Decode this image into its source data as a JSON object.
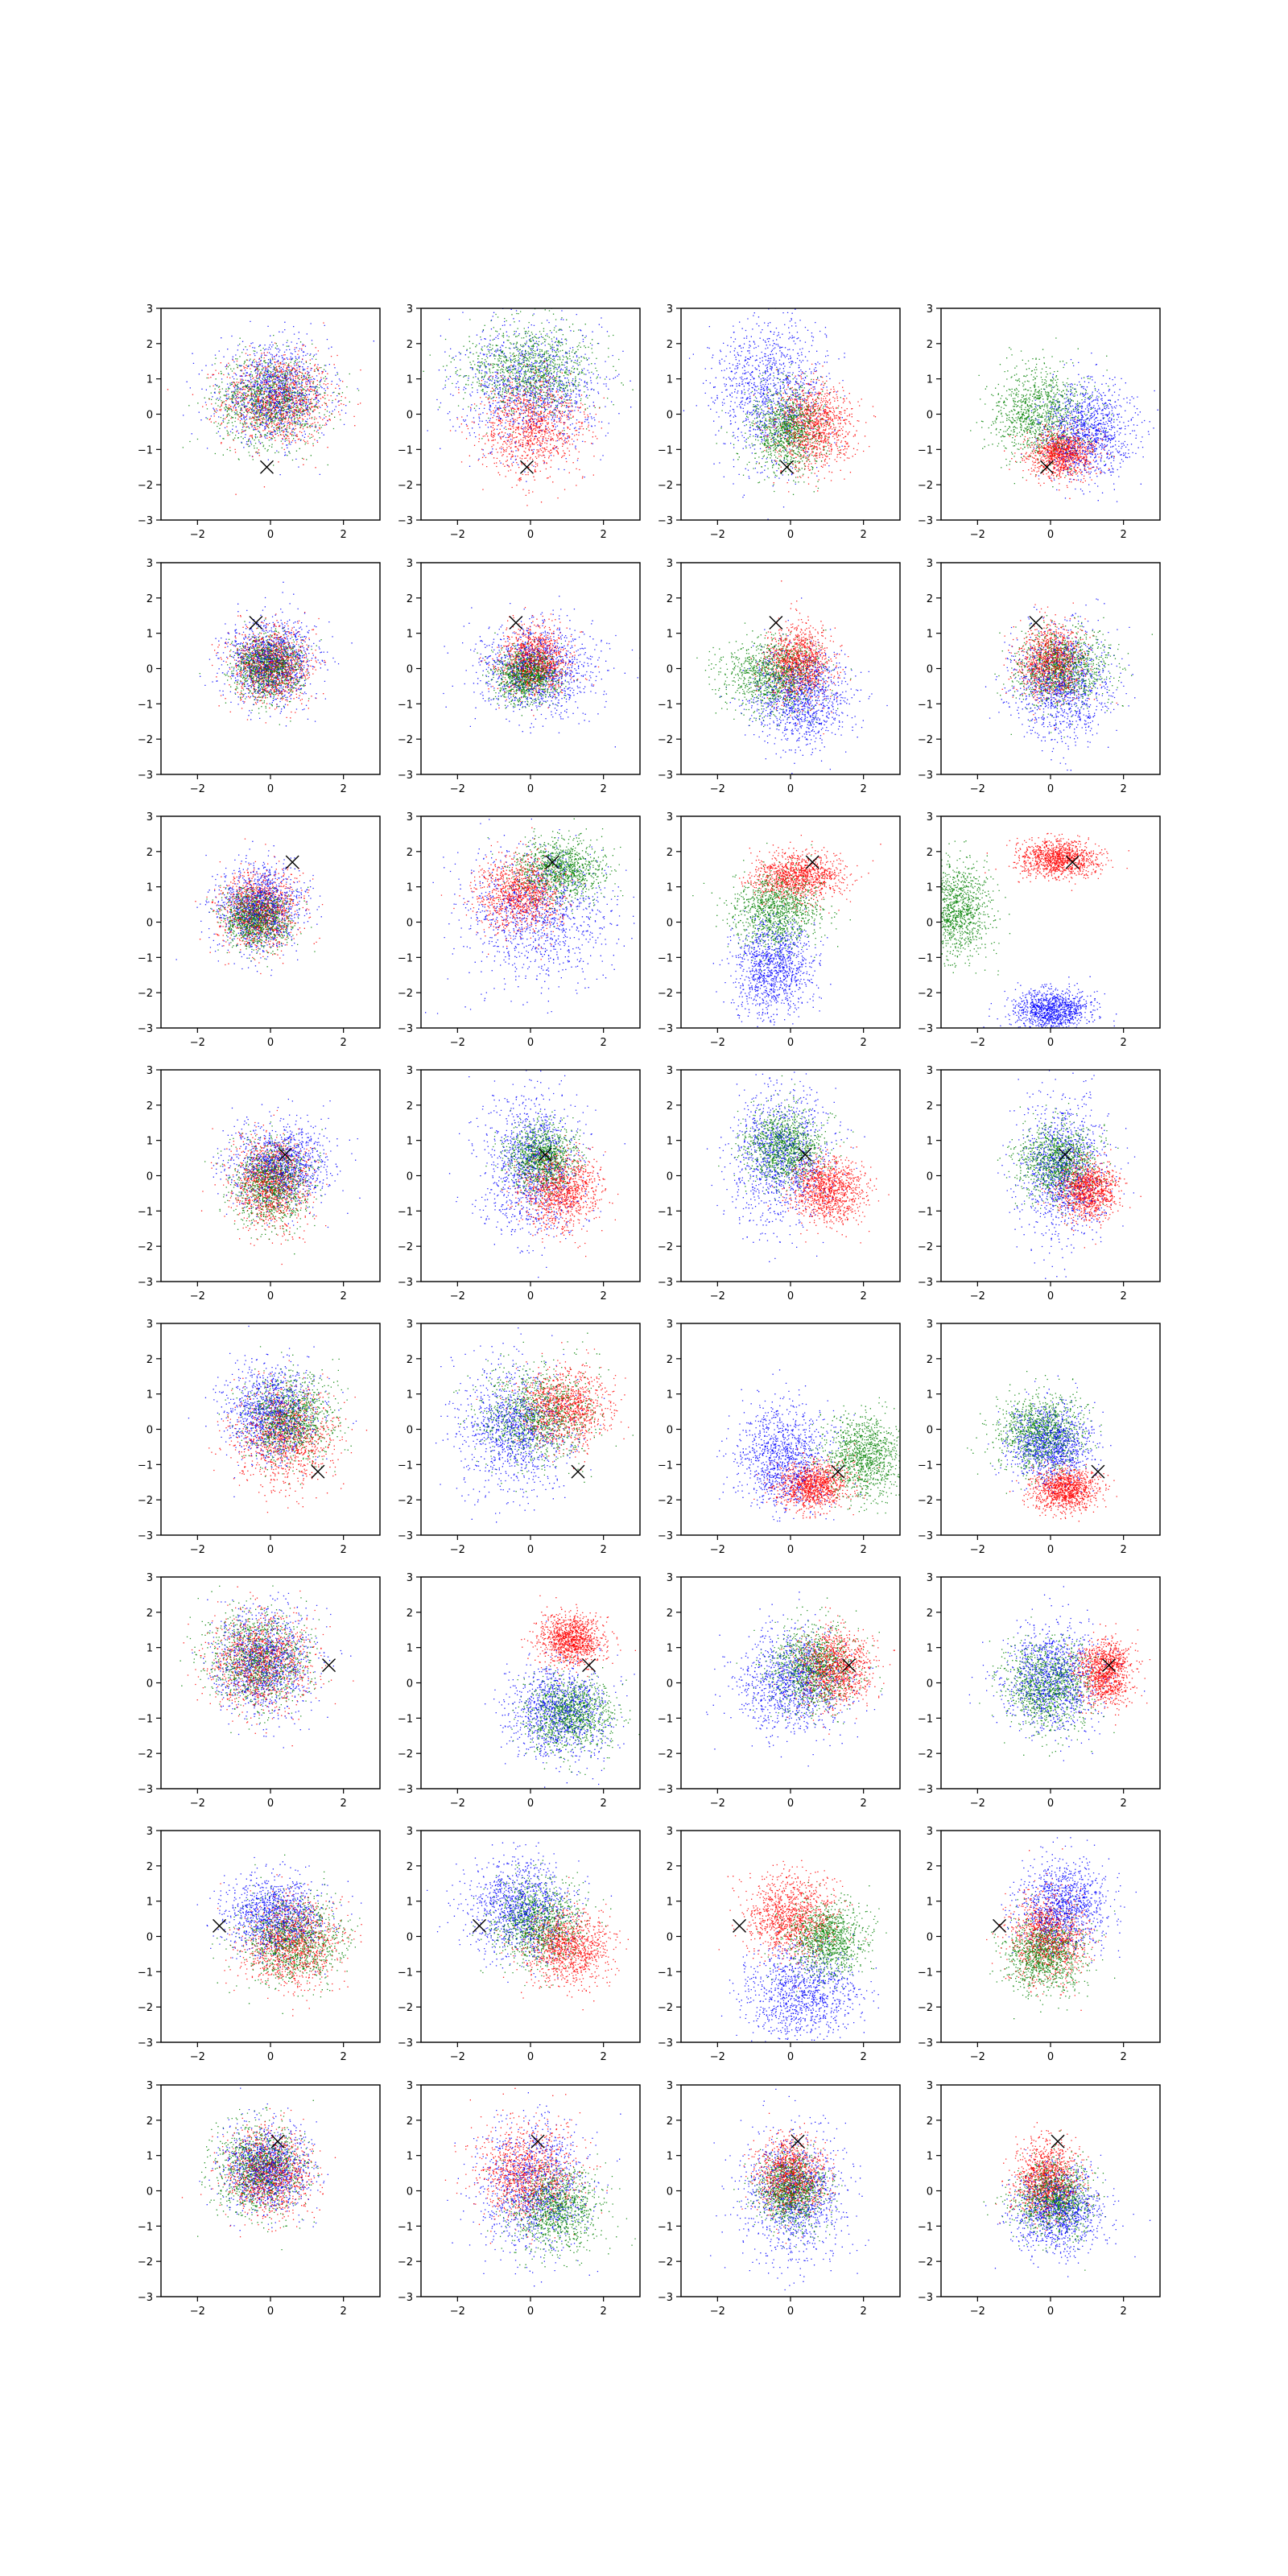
{
  "figure": {
    "rows": 8,
    "cols": 4,
    "colors": {
      "series_1": "#ff0000",
      "series_2": "#008000",
      "series_3": "#0000ff",
      "marker": "#000000",
      "axes": "#000000"
    }
  },
  "chart_data": {
    "type": "scatter",
    "title": "",
    "xlabel": "",
    "ylabel": "",
    "xlim": [
      -3,
      3
    ],
    "ylim": [
      -3,
      3
    ],
    "grid": false,
    "legend": "none",
    "x_ticks": [
      -2,
      0,
      2
    ],
    "y_ticks": [
      -3,
      -2,
      -1,
      0,
      1,
      2,
      3
    ],
    "x_tick_labels": [
      "−2",
      "0",
      "2"
    ],
    "y_tick_labels": [
      "−3",
      "−2",
      "−1",
      "0",
      "1",
      "2",
      "3"
    ],
    "marker_style": "x",
    "series_colors": [
      "#ff0000",
      "#008000",
      "#0000ff"
    ],
    "panels": [
      {
        "row": 1,
        "col": 1,
        "marker": [
          -0.1,
          -1.5
        ],
        "clouds": [
          [
            0.2,
            0.4,
            1.0,
            0.85
          ],
          [
            0.0,
            0.4,
            1.0,
            0.85
          ],
          [
            0.1,
            0.6,
            1.0,
            0.9
          ]
        ]
      },
      {
        "row": 1,
        "col": 2,
        "marker": [
          -0.1,
          -1.5
        ],
        "clouds": [
          [
            0.0,
            -0.3,
            0.95,
            0.95
          ],
          [
            0.0,
            1.3,
            1.2,
            0.8
          ],
          [
            0.0,
            0.8,
            1.3,
            1.2
          ]
        ]
      },
      {
        "row": 1,
        "col": 3,
        "marker": [
          -0.1,
          -1.5
        ],
        "clouds": [
          [
            0.6,
            -0.3,
            0.7,
            0.8
          ],
          [
            -0.1,
            -0.4,
            0.65,
            0.8
          ],
          [
            -0.6,
            0.7,
            1.0,
            1.4
          ]
        ]
      },
      {
        "row": 1,
        "col": 4,
        "marker": [
          -0.1,
          -1.5
        ],
        "clouds": [
          [
            0.3,
            -1.1,
            0.6,
            0.45
          ],
          [
            -0.3,
            0.0,
            0.9,
            0.9
          ],
          [
            1.0,
            -0.5,
            0.8,
            0.9
          ]
        ]
      },
      {
        "row": 2,
        "col": 1,
        "marker": [
          -0.4,
          1.3
        ],
        "clouds": [
          [
            0.0,
            0.1,
            0.7,
            0.7
          ],
          [
            -0.1,
            0.0,
            0.6,
            0.6
          ],
          [
            0.0,
            0.2,
            0.8,
            0.8
          ]
        ]
      },
      {
        "row": 2,
        "col": 2,
        "marker": [
          -0.4,
          1.3
        ],
        "clouds": [
          [
            0.1,
            0.2,
            0.6,
            0.6
          ],
          [
            -0.1,
            -0.2,
            0.55,
            0.5
          ],
          [
            0.2,
            0.0,
            1.1,
            0.9
          ]
        ]
      },
      {
        "row": 2,
        "col": 3,
        "marker": [
          -0.4,
          1.3
        ],
        "clouds": [
          [
            0.2,
            0.2,
            0.6,
            0.7
          ],
          [
            -0.5,
            -0.2,
            0.9,
            0.7
          ],
          [
            0.3,
            -0.8,
            0.9,
            0.9
          ]
        ]
      },
      {
        "row": 2,
        "col": 4,
        "marker": [
          -0.4,
          1.3
        ],
        "clouds": [
          [
            0.0,
            0.2,
            0.6,
            0.7
          ],
          [
            0.3,
            0.0,
            0.9,
            0.7
          ],
          [
            0.3,
            -0.5,
            0.9,
            1.1
          ]
        ]
      },
      {
        "row": 3,
        "col": 1,
        "marker": [
          0.6,
          1.7
        ],
        "clouds": [
          [
            -0.3,
            0.3,
            0.7,
            0.7
          ],
          [
            -0.4,
            0.1,
            0.6,
            0.55
          ],
          [
            -0.3,
            0.4,
            0.8,
            0.8
          ]
        ]
      },
      {
        "row": 3,
        "col": 2,
        "marker": [
          0.6,
          1.7
        ],
        "clouds": [
          [
            -0.3,
            0.8,
            0.8,
            0.7
          ],
          [
            0.8,
            1.5,
            0.8,
            0.6
          ],
          [
            0.2,
            0.2,
            1.3,
            1.3
          ]
        ]
      },
      {
        "row": 3,
        "col": 3,
        "marker": [
          0.6,
          1.7
        ],
        "clouds": [
          [
            0.2,
            1.3,
            0.8,
            0.45
          ],
          [
            -0.4,
            0.3,
            0.8,
            0.7
          ],
          [
            -0.5,
            -1.3,
            0.7,
            0.9
          ]
        ]
      },
      {
        "row": 3,
        "col": 4,
        "marker": [
          0.6,
          1.7
        ],
        "clouds": [
          [
            0.2,
            1.8,
            0.7,
            0.35
          ],
          [
            -2.6,
            0.3,
            0.6,
            0.9
          ],
          [
            0.0,
            -2.5,
            0.7,
            0.4
          ]
        ]
      },
      {
        "row": 4,
        "col": 1,
        "marker": [
          0.4,
          0.6
        ],
        "clouds": [
          [
            0.0,
            -0.2,
            0.7,
            0.9
          ],
          [
            0.0,
            -0.2,
            0.7,
            0.8
          ],
          [
            0.3,
            0.3,
            0.9,
            0.8
          ]
        ]
      },
      {
        "row": 4,
        "col": 2,
        "marker": [
          0.4,
          0.6
        ],
        "clouds": [
          [
            0.8,
            -0.4,
            0.7,
            0.7
          ],
          [
            0.3,
            0.5,
            0.6,
            0.6
          ],
          [
            0.0,
            0.3,
            0.9,
            1.4
          ]
        ]
      },
      {
        "row": 4,
        "col": 3,
        "marker": [
          0.4,
          0.6
        ],
        "clouds": [
          [
            1.0,
            -0.4,
            0.65,
            0.6
          ],
          [
            -0.2,
            0.8,
            0.7,
            0.7
          ],
          [
            -0.3,
            0.5,
            0.9,
            1.3
          ]
        ]
      },
      {
        "row": 4,
        "col": 4,
        "marker": [
          0.4,
          0.6
        ],
        "clouds": [
          [
            1.0,
            -0.4,
            0.55,
            0.55
          ],
          [
            0.2,
            0.4,
            0.7,
            0.7
          ],
          [
            0.3,
            0.2,
            0.8,
            1.3
          ]
        ]
      },
      {
        "row": 5,
        "col": 1,
        "marker": [
          1.3,
          -1.2
        ],
        "clouds": [
          [
            0.4,
            -0.2,
            0.9,
            0.9
          ],
          [
            0.5,
            0.3,
            0.8,
            0.8
          ],
          [
            0.0,
            0.5,
            0.8,
            0.9
          ]
        ]
      },
      {
        "row": 5,
        "col": 2,
        "marker": [
          1.3,
          -1.2
        ],
        "clouds": [
          [
            0.9,
            0.6,
            0.8,
            0.7
          ],
          [
            0.2,
            0.4,
            1.0,
            0.9
          ],
          [
            -0.5,
            0.0,
            1.0,
            1.2
          ]
        ]
      },
      {
        "row": 5,
        "col": 3,
        "marker": [
          1.3,
          -1.2
        ],
        "clouds": [
          [
            0.6,
            -1.6,
            0.65,
            0.45
          ],
          [
            2.0,
            -0.8,
            0.7,
            0.8
          ],
          [
            -0.2,
            -0.8,
            0.8,
            1.0
          ]
        ]
      },
      {
        "row": 5,
        "col": 4,
        "marker": [
          1.3,
          -1.2
        ],
        "clouds": [
          [
            0.4,
            -1.7,
            0.6,
            0.4
          ],
          [
            -0.3,
            -0.1,
            0.8,
            0.7
          ],
          [
            0.0,
            -0.4,
            0.7,
            0.7
          ]
        ]
      },
      {
        "row": 6,
        "col": 1,
        "marker": [
          1.6,
          0.5
        ],
        "clouds": [
          [
            -0.3,
            0.6,
            0.9,
            0.9
          ],
          [
            -0.3,
            0.7,
            0.9,
            0.9
          ],
          [
            -0.2,
            0.6,
            0.9,
            1.0
          ]
        ]
      },
      {
        "row": 6,
        "col": 2,
        "marker": [
          1.6,
          0.5
        ],
        "clouds": [
          [
            1.1,
            1.2,
            0.6,
            0.5
          ],
          [
            1.1,
            -0.9,
            0.8,
            0.7
          ],
          [
            0.8,
            -0.8,
            0.9,
            0.9
          ]
        ]
      },
      {
        "row": 6,
        "col": 3,
        "marker": [
          1.6,
          0.5
        ],
        "clouds": [
          [
            1.2,
            0.4,
            0.7,
            0.7
          ],
          [
            0.6,
            0.4,
            0.8,
            0.8
          ],
          [
            0.0,
            0.0,
            1.0,
            1.0
          ]
        ]
      },
      {
        "row": 6,
        "col": 4,
        "marker": [
          1.6,
          0.5
        ],
        "clouds": [
          [
            1.5,
            0.3,
            0.5,
            0.6
          ],
          [
            -0.1,
            -0.1,
            0.8,
            0.8
          ],
          [
            0.0,
            0.1,
            0.9,
            1.0
          ]
        ]
      },
      {
        "row": 7,
        "col": 1,
        "marker": [
          -1.4,
          0.3
        ],
        "clouds": [
          [
            0.5,
            -0.2,
            0.9,
            0.8
          ],
          [
            0.6,
            -0.1,
            0.9,
            0.8
          ],
          [
            0.1,
            0.6,
            0.9,
            0.7
          ]
        ]
      },
      {
        "row": 7,
        "col": 2,
        "marker": [
          -1.4,
          0.3
        ],
        "clouds": [
          [
            1.0,
            -0.3,
            0.8,
            0.7
          ],
          [
            0.2,
            0.4,
            0.8,
            0.8
          ],
          [
            -0.3,
            0.8,
            0.9,
            0.9
          ]
        ]
      },
      {
        "row": 7,
        "col": 3,
        "marker": [
          -1.4,
          0.3
        ],
        "clouds": [
          [
            0.0,
            0.6,
            0.8,
            0.8
          ],
          [
            1.0,
            -0.1,
            0.7,
            0.7
          ],
          [
            0.3,
            -1.6,
            1.0,
            0.9
          ]
        ]
      },
      {
        "row": 7,
        "col": 4,
        "marker": [
          -1.4,
          0.3
        ],
        "clouds": [
          [
            -0.1,
            0.0,
            0.7,
            0.8
          ],
          [
            -0.2,
            -0.5,
            0.7,
            0.7
          ],
          [
            0.3,
            0.9,
            0.8,
            0.8
          ]
        ]
      },
      {
        "row": 8,
        "col": 1,
        "marker": [
          0.2,
          1.4
        ],
        "clouds": [
          [
            -0.1,
            0.5,
            0.8,
            0.8
          ],
          [
            -0.3,
            0.6,
            0.8,
            0.8
          ],
          [
            -0.1,
            0.6,
            0.8,
            0.8
          ]
        ]
      },
      {
        "row": 8,
        "col": 2,
        "marker": [
          0.2,
          1.4
        ],
        "clouds": [
          [
            -0.1,
            0.5,
            0.9,
            0.9
          ],
          [
            0.7,
            -0.5,
            0.8,
            0.8
          ],
          [
            0.1,
            0.1,
            1.0,
            1.2
          ]
        ]
      },
      {
        "row": 8,
        "col": 3,
        "marker": [
          0.2,
          1.4
        ],
        "clouds": [
          [
            0.0,
            0.4,
            0.6,
            0.7
          ],
          [
            0.0,
            0.0,
            0.6,
            0.7
          ],
          [
            0.1,
            -0.1,
            0.9,
            1.2
          ]
        ]
      },
      {
        "row": 8,
        "col": 4,
        "marker": [
          0.2,
          1.4
        ],
        "clouds": [
          [
            -0.1,
            0.3,
            0.6,
            0.7
          ],
          [
            0.1,
            -0.2,
            0.7,
            0.7
          ],
          [
            0.2,
            -0.6,
            0.8,
            0.8
          ]
        ]
      }
    ]
  }
}
